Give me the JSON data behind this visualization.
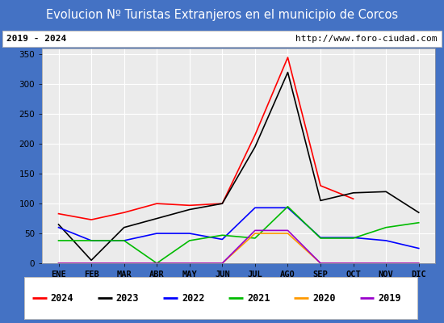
{
  "title": "Evolucion Nº Turistas Extranjeros en el municipio de Corcos",
  "subtitle_left": "2019 - 2024",
  "subtitle_right": "http://www.foro-ciudad.com",
  "months": [
    "ENE",
    "FEB",
    "MAR",
    "ABR",
    "MAY",
    "JUN",
    "JUL",
    "AGO",
    "SEP",
    "OCT",
    "NOV",
    "DIC"
  ],
  "series": {
    "2024": {
      "color": "#ff0000",
      "data": [
        83,
        73,
        85,
        100,
        97,
        100,
        215,
        345,
        130,
        108,
        null,
        null
      ]
    },
    "2023": {
      "color": "#000000",
      "data": [
        65,
        5,
        60,
        75,
        90,
        100,
        195,
        320,
        105,
        118,
        120,
        85
      ]
    },
    "2022": {
      "color": "#0000ff",
      "data": [
        60,
        38,
        38,
        50,
        50,
        40,
        93,
        93,
        43,
        43,
        38,
        25
      ]
    },
    "2021": {
      "color": "#00bb00",
      "data": [
        38,
        38,
        38,
        0,
        38,
        47,
        42,
        95,
        42,
        42,
        60,
        68
      ]
    },
    "2020": {
      "color": "#ff9900",
      "data": [
        0,
        0,
        0,
        0,
        0,
        0,
        50,
        50,
        0,
        0,
        0,
        0
      ]
    },
    "2019": {
      "color": "#9900cc",
      "data": [
        0,
        0,
        0,
        0,
        0,
        0,
        55,
        55,
        0,
        0,
        0,
        0
      ]
    }
  },
  "ylim": [
    0,
    360
  ],
  "yticks": [
    0,
    50,
    100,
    150,
    200,
    250,
    300,
    350
  ],
  "title_bg_color": "#4472c4",
  "title_font_color": "#ffffff",
  "plot_bg_color": "#ebebeb",
  "grid_color": "#ffffff",
  "border_color": "#4472c4",
  "legend_order": [
    "2024",
    "2023",
    "2022",
    "2021",
    "2020",
    "2019"
  ],
  "figsize": [
    5.5,
    4.0
  ],
  "dpi": 100
}
